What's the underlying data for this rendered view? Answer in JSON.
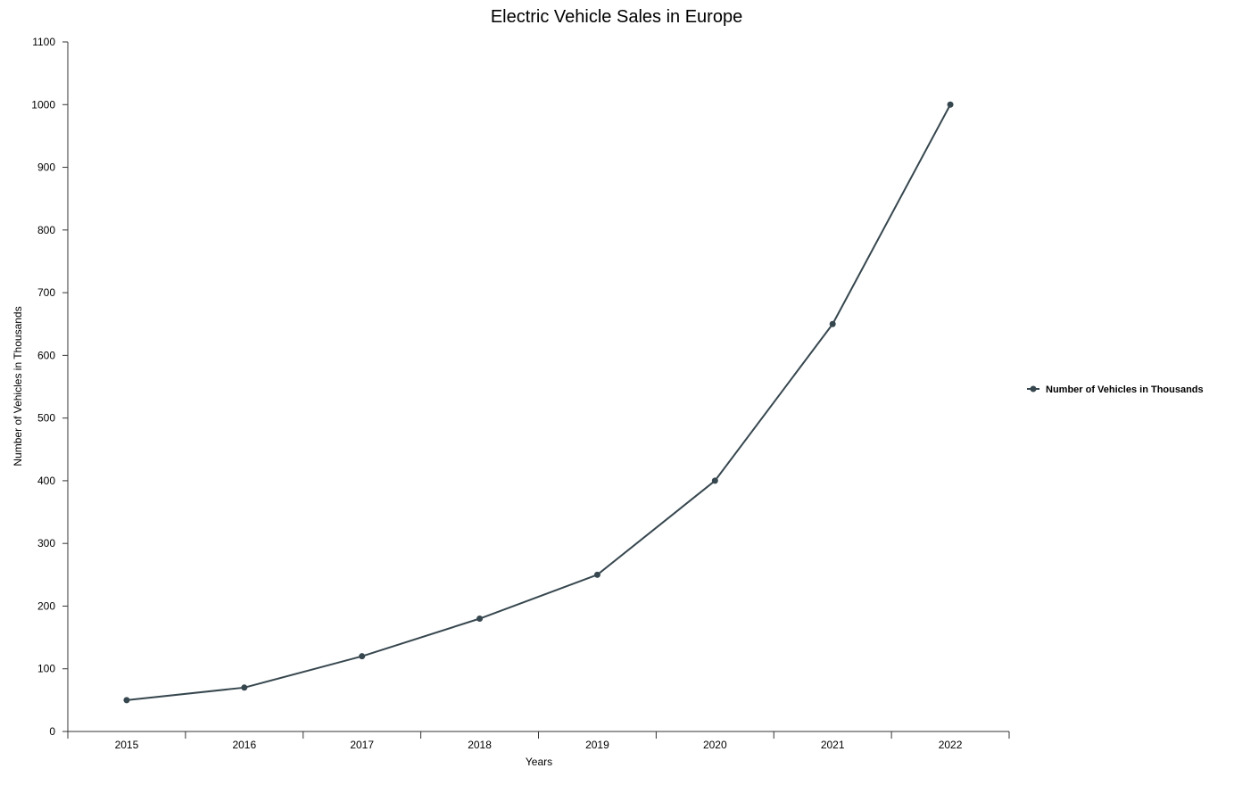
{
  "chart_data": {
    "type": "line",
    "title": "Electric Vehicle Sales in Europe",
    "xlabel": "Years",
    "ylabel": "Number of Vehicles in Thousands",
    "categories": [
      "2015",
      "2016",
      "2017",
      "2018",
      "2019",
      "2020",
      "2021",
      "2022"
    ],
    "ylim": [
      0,
      1100
    ],
    "yticks": [
      0,
      100,
      200,
      300,
      400,
      500,
      600,
      700,
      800,
      900,
      1000,
      1100
    ],
    "grid": false,
    "legend_position": "right",
    "series": [
      {
        "name": "Number of Vehicles in Thousands",
        "values": [
          50,
          70,
          120,
          180,
          250,
          400,
          650,
          1000
        ],
        "color": "#37474f"
      }
    ]
  }
}
